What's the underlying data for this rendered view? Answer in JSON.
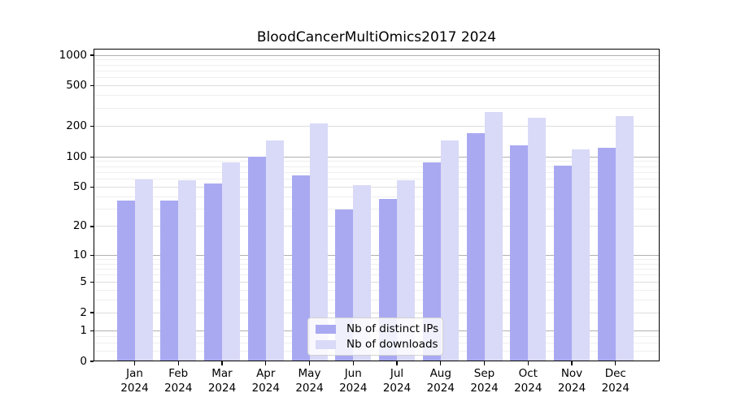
{
  "title": "BloodCancerMultiOmics2017 2024",
  "chart_data": {
    "type": "bar",
    "title": "BloodCancerMultiOmics2017 2024",
    "x_categories": [
      "Jan",
      "Feb",
      "Mar",
      "Apr",
      "May",
      "Jun",
      "Jul",
      "Aug",
      "Sep",
      "Oct",
      "Nov",
      "Dec"
    ],
    "x_year": "2024",
    "xlabel": "",
    "ylabel": "",
    "yscale": "symlog",
    "yticks": [
      0,
      1,
      2,
      5,
      10,
      20,
      50,
      100,
      200,
      500,
      1000
    ],
    "ylim": [
      0,
      1100
    ],
    "grid": true,
    "legend_position": "lower center inside plot",
    "series": [
      {
        "name": "Nb of distinct IPs",
        "color": "#a9a9f2",
        "values": [
          37,
          37,
          54,
          100,
          65,
          30,
          38,
          88,
          170,
          130,
          82,
          122
        ]
      },
      {
        "name": "Nb of downloads",
        "color": "#d9d9f8",
        "values": [
          60,
          58,
          88,
          144,
          215,
          52,
          59,
          146,
          275,
          245,
          118,
          252
        ]
      }
    ]
  }
}
